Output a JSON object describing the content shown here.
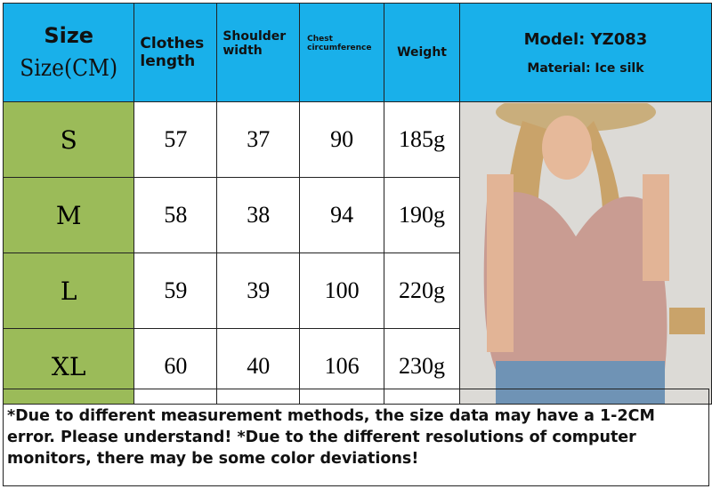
{
  "header": {
    "size_title": "Size",
    "size_sub": "Size(CM)",
    "columns": [
      "Clothes length",
      "Shoulder width",
      "Chest circumference",
      "Weight"
    ],
    "model": "Model: YZ083",
    "material": "Material: Ice silk"
  },
  "rows": [
    {
      "size": "S",
      "length": "57",
      "shoulder": "37",
      "chest": "90",
      "weight": "185g"
    },
    {
      "size": "M",
      "length": "58",
      "shoulder": "38",
      "chest": "94",
      "weight": "190g"
    },
    {
      "size": "L",
      "length": "59",
      "shoulder": "39",
      "chest": "100",
      "weight": "220g"
    },
    {
      "size": "XL",
      "length": "60",
      "shoulder": "40",
      "chest": "106",
      "weight": "230g"
    }
  ],
  "footer": "*Due to different measurement methods, the size data may have a 1-2CM error. Please understand! *Due to the different resolutions of computer monitors, there may be some color deviations!",
  "colors": {
    "header": "#19b0ea",
    "size_column": "#9bbb59"
  }
}
